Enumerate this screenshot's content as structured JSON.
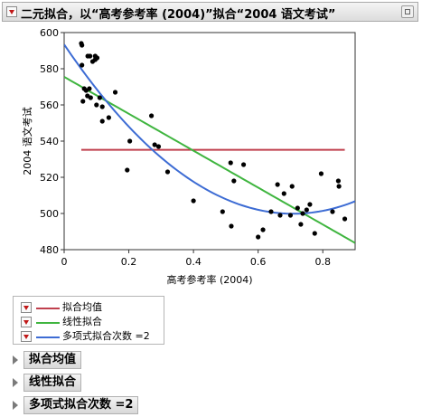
{
  "header": {
    "title": "二元拟合，以“高考参考率 (2004)”拟合“2004 语文考试”"
  },
  "chart_data": {
    "type": "scatter",
    "xlabel": "高考参考率 (2004)",
    "ylabel": "2004 语文考试",
    "xlim": [
      0,
      0.9
    ],
    "ylim": [
      480,
      600
    ],
    "x_ticks": [
      0,
      0.2,
      0.4,
      0.6,
      0.8
    ],
    "y_ticks": [
      480,
      500,
      520,
      540,
      560,
      580,
      600
    ],
    "x_tick_labels": [
      "0",
      "0.2",
      "0.4",
      "0.6",
      "0.8"
    ],
    "y_tick_labels": [
      "480",
      "500",
      "520",
      "540",
      "560",
      "580",
      "600"
    ],
    "grid": false,
    "points": [
      [
        0.053,
        594
      ],
      [
        0.055,
        593
      ],
      [
        0.055,
        582
      ],
      [
        0.058,
        562
      ],
      [
        0.062,
        569
      ],
      [
        0.068,
        568
      ],
      [
        0.072,
        565
      ],
      [
        0.073,
        587
      ],
      [
        0.078,
        569
      ],
      [
        0.08,
        587
      ],
      [
        0.082,
        564
      ],
      [
        0.088,
        584
      ],
      [
        0.096,
        587
      ],
      [
        0.096,
        585
      ],
      [
        0.1,
        560
      ],
      [
        0.102,
        586
      ],
      [
        0.11,
        564
      ],
      [
        0.118,
        551
      ],
      [
        0.118,
        559
      ],
      [
        0.138,
        553
      ],
      [
        0.158,
        567
      ],
      [
        0.195,
        524
      ],
      [
        0.203,
        540
      ],
      [
        0.27,
        554
      ],
      [
        0.28,
        538
      ],
      [
        0.292,
        537
      ],
      [
        0.32,
        523
      ],
      [
        0.4,
        507
      ],
      [
        0.49,
        501
      ],
      [
        0.515,
        528
      ],
      [
        0.517,
        493
      ],
      [
        0.525,
        518
      ],
      [
        0.555,
        527
      ],
      [
        0.6,
        487
      ],
      [
        0.615,
        491
      ],
      [
        0.64,
        501
      ],
      [
        0.66,
        516
      ],
      [
        0.668,
        499
      ],
      [
        0.68,
        511
      ],
      [
        0.7,
        499
      ],
      [
        0.705,
        515
      ],
      [
        0.722,
        503
      ],
      [
        0.732,
        494
      ],
      [
        0.738,
        500
      ],
      [
        0.75,
        502
      ],
      [
        0.76,
        505
      ],
      [
        0.775,
        489
      ],
      [
        0.795,
        522
      ],
      [
        0.83,
        501
      ],
      [
        0.848,
        518
      ],
      [
        0.85,
        515
      ],
      [
        0.868,
        497
      ]
    ],
    "fits": [
      {
        "name": "拟合均值",
        "kind": "mean",
        "value": 535.2,
        "x_range": [
          0.053,
          0.868
        ],
        "color": "#c0404e"
      },
      {
        "name": "线性拟合",
        "kind": "linear",
        "coef": [
          575.5,
          -102.0
        ],
        "x_range": [
          0,
          0.9
        ],
        "color": "#3fb53f"
      },
      {
        "name": "多项式拟合次数 =2",
        "kind": "poly",
        "coef": [
          593.4,
          -264.3,
          186.7
        ],
        "x_range": [
          0,
          0.9
        ],
        "color": "#3d6cd4"
      }
    ]
  },
  "legend": {
    "items": [
      {
        "label": "拟合均值",
        "color": "#c0404e"
      },
      {
        "label": "线性拟合",
        "color": "#3fb53f"
      },
      {
        "label": "多项式拟合次数 =2",
        "color": "#3d6cd4"
      }
    ]
  },
  "reports": [
    {
      "title": "拟合均值"
    },
    {
      "title": "线性拟合"
    },
    {
      "title": "多项式拟合次数 =2"
    }
  ]
}
